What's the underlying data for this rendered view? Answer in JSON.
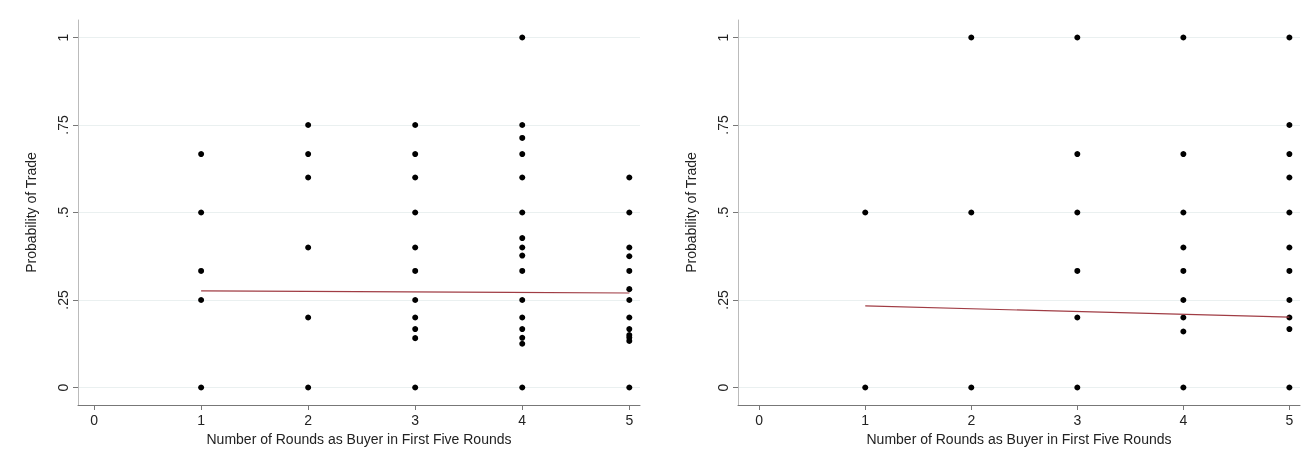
{
  "chart_data": [
    {
      "type": "scatter",
      "xlabel": "Number of Rounds as Buyer in First Five Rounds",
      "ylabel": "Probability of Trade",
      "xlim": [
        -0.15,
        5.1
      ],
      "xticks": [
        {
          "value": 0,
          "label": "0"
        },
        1,
        2,
        3,
        4,
        5
      ],
      "ylim": [
        -0.05,
        1.05
      ],
      "yticks": [
        {
          "value": 0,
          "label": "0"
        },
        {
          "value": 0.25,
          "label": ".25"
        },
        {
          "value": 0.5,
          "label": ".5"
        },
        {
          "value": 0.75,
          "label": ".75"
        },
        1
      ],
      "grid": "y",
      "marker": "circle",
      "series": [
        {
          "color": "#000000",
          "x": [
            1,
            1,
            1,
            1,
            1,
            2,
            2,
            2,
            2,
            2,
            2,
            3,
            3,
            3,
            3,
            3,
            3,
            3,
            3,
            3,
            3,
            3,
            4,
            4,
            4,
            4,
            4,
            4,
            4,
            4,
            4,
            4,
            4,
            4,
            4,
            4,
            4,
            4,
            5,
            5,
            5,
            5,
            5,
            5,
            5,
            5,
            5,
            5,
            5,
            5,
            5
          ],
          "values": [
            0.667,
            0.5,
            0.333,
            0.25,
            0,
            0.75,
            0.667,
            0.6,
            0.4,
            0.2,
            0,
            0.75,
            0.667,
            0.6,
            0.5,
            0.4,
            0.333,
            0.25,
            0.2,
            0.167,
            0.141,
            0,
            1,
            0.75,
            0.713,
            0.667,
            0.6,
            0.5,
            0.427,
            0.4,
            0.377,
            0.333,
            0.25,
            0.2,
            0.167,
            0.142,
            0.125,
            0,
            0.6,
            0.5,
            0.4,
            0.375,
            0.333,
            0.281,
            0.25,
            0.2,
            0.167,
            0.15,
            0.143,
            0.133,
            0
          ]
        },
        {
          "type": "line",
          "marker": "none",
          "color": "#a03c44",
          "x": [
            1,
            5
          ],
          "values": [
            0.276,
            0.27
          ]
        }
      ]
    },
    {
      "type": "scatter",
      "xlabel": "Number of Rounds as Buyer in First Five Rounds",
      "ylabel": "Probability of Trade",
      "xlim": [
        -0.2,
        5.1
      ],
      "xticks": [
        {
          "value": 0,
          "label": "0"
        },
        1,
        2,
        3,
        4,
        5
      ],
      "ylim": [
        -0.05,
        1.05
      ],
      "yticks": [
        {
          "value": 0,
          "label": "0"
        },
        {
          "value": 0.25,
          "label": ".25"
        },
        {
          "value": 0.5,
          "label": ".5"
        },
        {
          "value": 0.75,
          "label": ".75"
        },
        1
      ],
      "grid": "y",
      "marker": "circle",
      "series": [
        {
          "color": "#000000",
          "x": [
            1,
            1,
            2,
            2,
            2,
            3,
            3,
            3,
            3,
            3,
            3,
            4,
            4,
            4,
            4,
            4,
            4,
            4,
            4,
            4,
            5,
            5,
            5,
            5,
            5,
            5,
            5,
            5,
            5,
            5,
            5
          ],
          "values": [
            0.5,
            0,
            1,
            0.5,
            0,
            1,
            0.667,
            0.5,
            0.333,
            0.2,
            0,
            1,
            0.667,
            0.5,
            0.4,
            0.333,
            0.25,
            0.2,
            0.16,
            0,
            1,
            0.75,
            0.667,
            0.6,
            0.5,
            0.4,
            0.333,
            0.25,
            0.2,
            0.167,
            0
          ]
        },
        {
          "type": "line",
          "marker": "none",
          "color": "#a03c44",
          "x": [
            1,
            5
          ],
          "values": [
            0.233,
            0.201
          ]
        }
      ]
    }
  ]
}
